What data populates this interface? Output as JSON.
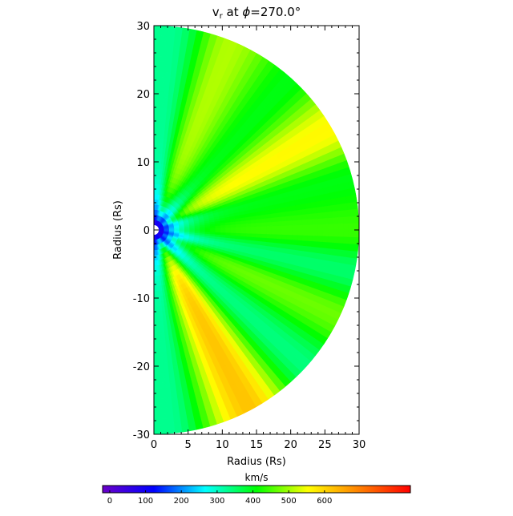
{
  "chart_data": [
    {
      "type": "heatmap",
      "title_main": "v",
      "title_sub": "r",
      "title_rest": " at ",
      "title_phi": "ϕ",
      "title_value": "=270.0°",
      "xlabel": "Radius (Rs)",
      "ylabel": "Radius (Rs)",
      "xlim": [
        0,
        30
      ],
      "ylim": [
        -30,
        30
      ],
      "x_ticks": [
        0,
        5,
        10,
        15,
        20,
        25,
        30
      ],
      "y_ticks": [
        -30,
        -20,
        -10,
        0,
        10,
        20,
        30
      ],
      "domain_shape": "half-disk",
      "outer_radius": 30,
      "inner_radius": 0.6,
      "note_values": "radial solar wind speed in km/s; fast streams (red/orange) and slow streams (green/yellow) fan outward from the origin",
      "streams": [
        {
          "angle_deg": 68,
          "value": 510
        },
        {
          "angle_deg": 30,
          "value": 560
        },
        {
          "angle_deg": 0,
          "value": 440
        },
        {
          "angle_deg": -25,
          "value": 470
        },
        {
          "angle_deg": -62,
          "value": 620
        }
      ],
      "slow_lanes": [
        {
          "angle_deg": 85,
          "value": 330
        },
        {
          "angle_deg": 48,
          "value": 400
        },
        {
          "angle_deg": 15,
          "value": 400
        },
        {
          "angle_deg": -12,
          "value": 350
        },
        {
          "angle_deg": -42,
          "value": 340
        },
        {
          "angle_deg": -85,
          "value": 330
        }
      ],
      "grid": false
    },
    {
      "type": "colorbar",
      "label": "km/s",
      "range": [
        -20,
        840
      ],
      "ticks": [
        0,
        100,
        200,
        300,
        400,
        500,
        600
      ],
      "tick_labels": [
        "0",
        "100",
        "200",
        "300",
        "400",
        "500",
        "600"
      ],
      "colors": [
        "#6a00c8",
        "#0000ff",
        "#00ffff",
        "#00ff00",
        "#ffff00",
        "#ff8000",
        "#ff0000"
      ]
    }
  ],
  "colors": {
    "axis": "#000000",
    "background": "#ffffff"
  }
}
